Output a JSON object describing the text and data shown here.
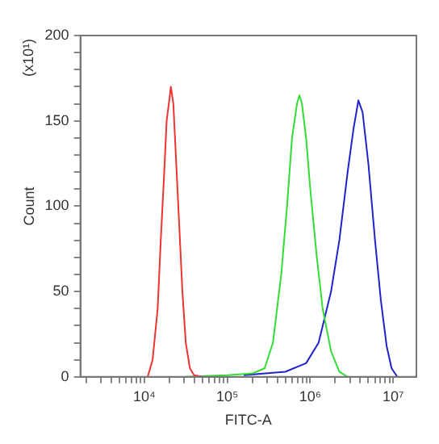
{
  "chart_data": {
    "type": "line",
    "xlabel": "FITC-A",
    "ylabel": "Count",
    "annotations": [
      "(x10¹)"
    ],
    "log": "x",
    "grid": false,
    "legend": false,
    "marker": "none",
    "line_style": "solid",
    "xlim": [
      1700,
      19000000
    ],
    "ylim": [
      0,
      200
    ],
    "xticks": [
      {
        "value": 2000,
        "label": null
      },
      {
        "value": 3000,
        "label": null
      },
      {
        "value": 4000,
        "label": null
      },
      {
        "value": 5000,
        "label": null
      },
      {
        "value": 6000,
        "label": null
      },
      {
        "value": 7000,
        "label": null
      },
      {
        "value": 8000,
        "label": null
      },
      {
        "value": 9000,
        "label": null
      },
      {
        "value": 10000,
        "label": "10⁴"
      },
      {
        "value": 20000,
        "label": null
      },
      {
        "value": 30000,
        "label": null
      },
      {
        "value": 40000,
        "label": null
      },
      {
        "value": 50000,
        "label": null
      },
      {
        "value": 60000,
        "label": null
      },
      {
        "value": 70000,
        "label": null
      },
      {
        "value": 80000,
        "label": null
      },
      {
        "value": 90000,
        "label": null
      },
      {
        "value": 100000,
        "label": "10⁵"
      },
      {
        "value": 200000,
        "label": null
      },
      {
        "value": 300000,
        "label": null
      },
      {
        "value": 400000,
        "label": null
      },
      {
        "value": 500000,
        "label": null
      },
      {
        "value": 600000,
        "label": null
      },
      {
        "value": 700000,
        "label": null
      },
      {
        "value": 800000,
        "label": null
      },
      {
        "value": 900000,
        "label": null
      },
      {
        "value": 1000000,
        "label": "10⁶"
      },
      {
        "value": 2000000,
        "label": null
      },
      {
        "value": 3000000,
        "label": null
      },
      {
        "value": 4000000,
        "label": null
      },
      {
        "value": 5000000,
        "label": null
      },
      {
        "value": 6000000,
        "label": null
      },
      {
        "value": 7000000,
        "label": null
      },
      {
        "value": 8000000,
        "label": null
      },
      {
        "value": 9000000,
        "label": null
      },
      {
        "value": 10000000,
        "label": "10⁷"
      }
    ],
    "yticks": [
      0,
      {
        "value": 10,
        "label": null
      },
      {
        "value": 20,
        "label": null
      },
      {
        "value": 30,
        "label": null
      },
      {
        "value": 40,
        "label": null
      },
      50,
      {
        "value": 60,
        "label": null
      },
      {
        "value": 70,
        "label": null
      },
      {
        "value": 80,
        "label": null
      },
      {
        "value": 90,
        "label": null
      },
      100,
      {
        "value": 110,
        "label": null
      },
      {
        "value": 120,
        "label": null
      },
      {
        "value": 130,
        "label": null
      },
      {
        "value": 140,
        "label": null
      },
      150,
      {
        "value": 160,
        "label": null
      },
      {
        "value": 170,
        "label": null
      },
      {
        "value": 180,
        "label": null
      },
      {
        "value": 190,
        "label": null
      },
      200
    ],
    "series": [
      {
        "color": "#ee3333",
        "x": [
          11000,
          12600,
          14500,
          15800,
          17400,
          18600,
          20000,
          20900,
          22400,
          24000,
          26300,
          28800,
          31600,
          35500,
          39800,
          50100
        ],
        "values": [
          0,
          10,
          40,
          80,
          120,
          150,
          162,
          170,
          160,
          130,
          90,
          50,
          20,
          5,
          1,
          0
        ]
      },
      {
        "color": "#33dd33",
        "x": [
          31600,
          100000,
          200000,
          282000,
          355000,
          447000,
          525000,
          603000,
          692000,
          741000,
          794000,
          891000,
          1000000,
          1200000,
          1410000,
          1780000,
          2240000,
          2820000
        ],
        "values": [
          0,
          1,
          2,
          5,
          20,
          60,
          100,
          140,
          160,
          165,
          160,
          140,
          110,
          70,
          40,
          15,
          3,
          0
        ]
      },
      {
        "color": "#2222cc",
        "x": [
          158000,
          501000,
          891000,
          1260000,
          1780000,
          2240000,
          2820000,
          3310000,
          3800000,
          4270000,
          5010000,
          6030000,
          7080000,
          8320000,
          9550000,
          11200000
        ],
        "values": [
          1,
          3,
          8,
          20,
          50,
          80,
          120,
          145,
          162,
          155,
          125,
          80,
          45,
          18,
          5,
          0
        ]
      }
    ]
  }
}
